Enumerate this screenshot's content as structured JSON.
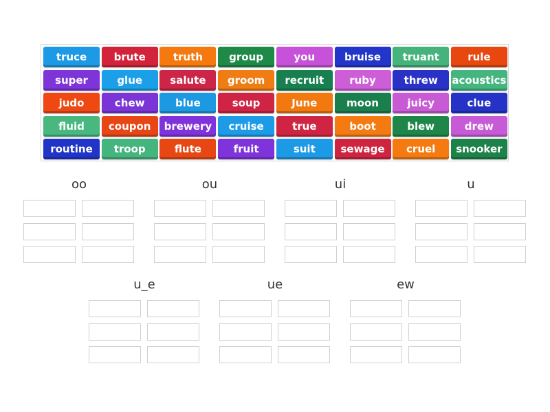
{
  "tile_colors": [
    "#1d9ae6",
    "#d3233a",
    "#f5790f",
    "#1f8a47",
    "#c752d9",
    "#2236c9",
    "#45b37b",
    "#e8470f",
    "#7d34d9",
    "#1a9fe8",
    "#cc2547",
    "#f07c14",
    "#188050",
    "#cd5ed8",
    "#2a31c7",
    "#44b57f",
    "#f04813",
    "#7b34d5",
    "#1c99e2",
    "#cf2443",
    "#f27810",
    "#1a7f4c",
    "#c85ad6",
    "#2432c5",
    "#48b880",
    "#e84614",
    "#8033dc",
    "#1d9be6",
    "#d02542",
    "#f47a12",
    "#1e8648",
    "#c75bd7",
    "#2134c8",
    "#44b57e",
    "#e74712",
    "#7f33da",
    "#1c9ae5",
    "#cf2440",
    "#f57b11",
    "#1c8249"
  ],
  "tiles": [
    "truce",
    "brute",
    "truth",
    "group",
    "you",
    "bruise",
    "truant",
    "rule",
    "super",
    "glue",
    "salute",
    "groom",
    "recruit",
    "ruby",
    "threw",
    "acoustics",
    "judo",
    "chew",
    "blue",
    "soup",
    "June",
    "moon",
    "juicy",
    "clue",
    "fluid",
    "coupon",
    "brewery",
    "cruise",
    "true",
    "boot",
    "blew",
    "drew",
    "routine",
    "troop",
    "flute",
    "fruit",
    "suit",
    "sewage",
    "cruel",
    "snooker"
  ],
  "groups": [
    "oo",
    "ou",
    "ui",
    "u",
    "u_e",
    "ue",
    "ew"
  ]
}
